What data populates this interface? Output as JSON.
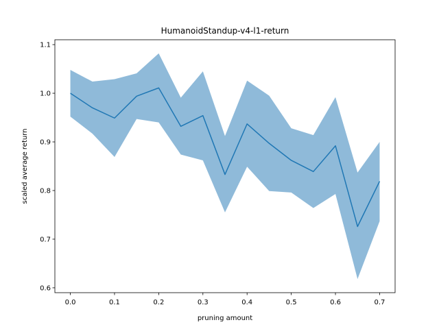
{
  "chart_data": {
    "type": "line",
    "title": "HumanoidStandup-v4-l1-return",
    "xlabel": "pruning amount",
    "ylabel": "scaled average return",
    "xlim": [
      -0.035,
      0.735
    ],
    "ylim": [
      0.59,
      1.11
    ],
    "xticks": [
      0.0,
      0.1,
      0.2,
      0.3,
      0.4,
      0.5,
      0.6,
      0.7
    ],
    "xtick_labels": [
      "0.0",
      "0.1",
      "0.2",
      "0.3",
      "0.4",
      "0.5",
      "0.6",
      "0.7"
    ],
    "yticks": [
      0.6,
      0.7,
      0.8,
      0.9,
      1.0,
      1.1
    ],
    "ytick_labels": [
      "0.6",
      "0.7",
      "0.8",
      "0.9",
      "1.0",
      "1.1"
    ],
    "grid": false,
    "x": [
      0.0,
      0.05,
      0.1,
      0.15,
      0.2,
      0.25,
      0.3,
      0.35,
      0.4,
      0.45,
      0.5,
      0.55,
      0.6,
      0.65,
      0.7
    ],
    "series": [
      {
        "values": [
          1.0,
          0.97,
          0.949,
          0.994,
          1.011,
          0.932,
          0.954,
          0.833,
          0.937,
          0.897,
          0.862,
          0.839,
          0.892,
          0.726,
          0.819
        ],
        "lower": [
          0.952,
          0.917,
          0.869,
          0.947,
          0.94,
          0.874,
          0.862,
          0.755,
          0.849,
          0.799,
          0.796,
          0.764,
          0.793,
          0.618,
          0.737
        ],
        "upper": [
          1.048,
          1.024,
          1.029,
          1.041,
          1.082,
          0.991,
          1.045,
          0.912,
          1.026,
          0.995,
          0.928,
          0.914,
          0.992,
          0.837,
          0.9
        ],
        "line_color": "#1f77b4",
        "band_color": "#8fbad9"
      }
    ]
  }
}
